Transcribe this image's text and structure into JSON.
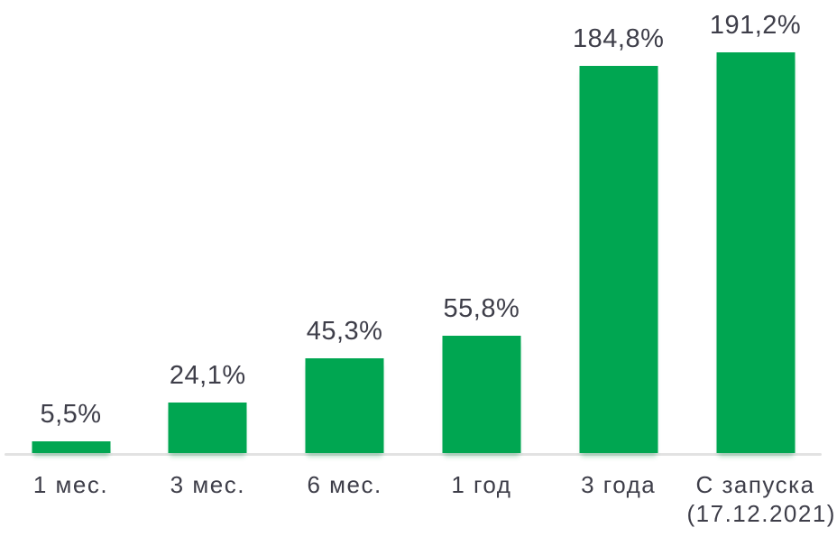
{
  "colors": {
    "bar": "#00A651",
    "text": "#3E3E49",
    "axis": "#E2E2E2",
    "background": "#FFFFFF"
  },
  "chart_data": {
    "type": "bar",
    "categories": [
      "1 мес.",
      "3 мес.",
      "6 мес.",
      "1 год",
      "3 года",
      "С запуска\n(17.12.2021)"
    ],
    "values": [
      5.5,
      24.1,
      45.3,
      55.8,
      184.8,
      191.2
    ],
    "value_labels": [
      "5,5%",
      "24,1%",
      "45,3%",
      "55,8%",
      "184,8%",
      "191,2%"
    ],
    "title": "",
    "xlabel": "",
    "ylabel": "",
    "ylim": [
      0,
      200
    ],
    "grid": false,
    "legend": false,
    "bar_color": "#00A651"
  }
}
